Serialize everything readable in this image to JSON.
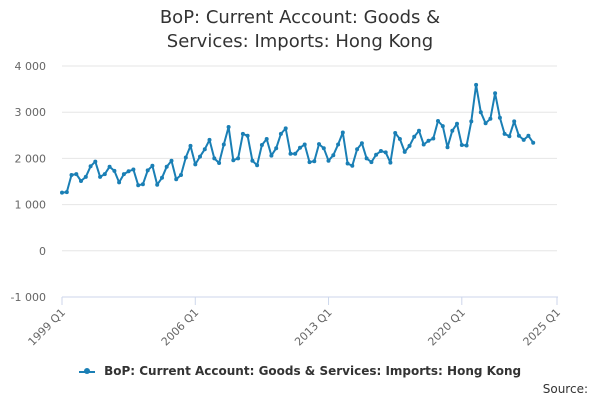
{
  "chart_data": {
    "type": "line",
    "title": "BoP: Current Account: Goods & Services: Imports: Hong Kong",
    "xlabel": "",
    "ylabel": "",
    "x_start": "1999 Q1",
    "x_ticks": [
      "1999 Q1",
      "2006 Q1",
      "2013 Q1",
      "2020 Q1",
      "2025 Q1"
    ],
    "y_ticks": [
      "-1 000",
      "0",
      "1 000",
      "2 000",
      "3 000",
      "4 000"
    ],
    "ylim": [
      -1000,
      4000
    ],
    "grid": "horizontal",
    "legend_position": "bottom",
    "credits": "Source:",
    "series": [
      {
        "name": "BoP: Current Account: Goods & Services: Imports: Hong Kong",
        "color": "#1a7fb5",
        "values": [
          1260,
          1270,
          1640,
          1660,
          1510,
          1600,
          1830,
          1930,
          1600,
          1660,
          1820,
          1730,
          1480,
          1660,
          1720,
          1760,
          1420,
          1440,
          1740,
          1840,
          1430,
          1580,
          1820,
          1950,
          1550,
          1640,
          2020,
          2270,
          1870,
          2040,
          2200,
          2400,
          2000,
          1900,
          2300,
          2680,
          1960,
          2000,
          2530,
          2490,
          1950,
          1850,
          2290,
          2420,
          2060,
          2220,
          2530,
          2650,
          2100,
          2100,
          2230,
          2300,
          1920,
          1940,
          2310,
          2220,
          1950,
          2070,
          2300,
          2560,
          1890,
          1840,
          2200,
          2330,
          2000,
          1920,
          2080,
          2160,
          2130,
          1910,
          2550,
          2420,
          2140,
          2270,
          2470,
          2600,
          2300,
          2380,
          2430,
          2810,
          2700,
          2240,
          2600,
          2750,
          2290,
          2280,
          2800,
          3590,
          3000,
          2760,
          2860,
          3410,
          2880,
          2530,
          2480,
          2800,
          2490,
          2400,
          2490,
          2340
        ]
      }
    ]
  }
}
